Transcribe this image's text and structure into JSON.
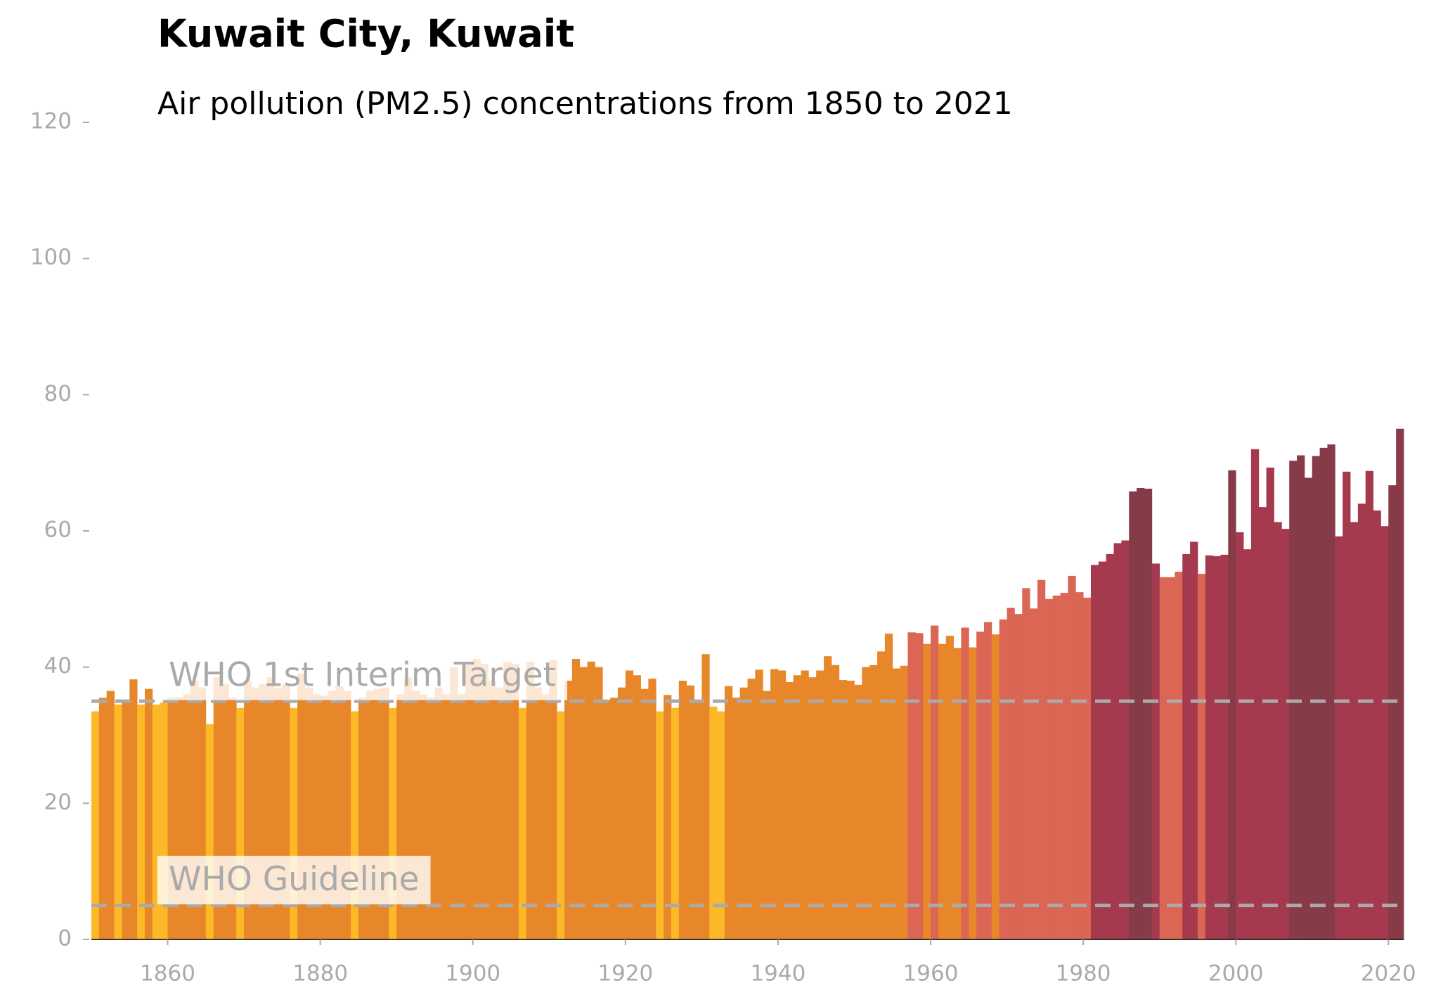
{
  "chart_data": {
    "type": "bar",
    "title": "Kuwait City, Kuwait",
    "subtitle": "Air pollution (PM2.5) concentrations from 1850 to 2021",
    "x": [
      1850,
      1851,
      1852,
      1853,
      1854,
      1855,
      1856,
      1857,
      1858,
      1859,
      1860,
      1861,
      1862,
      1863,
      1864,
      1865,
      1866,
      1867,
      1868,
      1869,
      1870,
      1871,
      1872,
      1873,
      1874,
      1875,
      1876,
      1877,
      1878,
      1879,
      1880,
      1881,
      1882,
      1883,
      1884,
      1885,
      1886,
      1887,
      1888,
      1889,
      1890,
      1891,
      1892,
      1893,
      1894,
      1895,
      1896,
      1897,
      1898,
      1899,
      1900,
      1901,
      1902,
      1903,
      1904,
      1905,
      1906,
      1907,
      1908,
      1909,
      1910,
      1911,
      1912,
      1913,
      1914,
      1915,
      1916,
      1917,
      1918,
      1919,
      1920,
      1921,
      1922,
      1923,
      1924,
      1925,
      1926,
      1927,
      1928,
      1929,
      1930,
      1931,
      1932,
      1933,
      1934,
      1935,
      1936,
      1937,
      1938,
      1939,
      1940,
      1941,
      1942,
      1943,
      1944,
      1945,
      1946,
      1947,
      1948,
      1949,
      1950,
      1951,
      1952,
      1953,
      1954,
      1955,
      1956,
      1957,
      1958,
      1959,
      1960,
      1961,
      1962,
      1963,
      1964,
      1965,
      1966,
      1967,
      1968,
      1969,
      1970,
      1971,
      1972,
      1973,
      1974,
      1975,
      1976,
      1977,
      1978,
      1979,
      1980,
      1981,
      1982,
      1983,
      1984,
      1985,
      1986,
      1987,
      1988,
      1989,
      1990,
      1991,
      1992,
      1993,
      1994,
      1995,
      1996,
      1997,
      1998,
      1999,
      2000,
      2001,
      2002,
      2003,
      2004,
      2005,
      2006,
      2007,
      2008,
      2009,
      2010,
      2011,
      2012,
      2013,
      2014,
      2015,
      2016,
      2017,
      2018,
      2019,
      2020,
      2021
    ],
    "values": [
      33.5,
      35.5,
      36.5,
      34.5,
      35.2,
      38.2,
      34.5,
      36.8,
      34.5,
      34.8,
      35.5,
      35.6,
      36,
      38,
      37,
      31.6,
      38.5,
      37.5,
      35.5,
      34,
      38,
      37,
      37.5,
      38.5,
      37,
      37.5,
      34,
      39,
      37,
      36,
      35.8,
      36.5,
      37.2,
      36.5,
      33.5,
      35.5,
      36.5,
      36.8,
      37,
      34,
      36,
      38.5,
      36.5,
      36,
      35.5,
      37,
      36,
      40,
      36,
      40.3,
      41.2,
      40.5,
      38,
      37,
      40.8,
      40.5,
      34,
      40.8,
      37,
      36,
      41,
      33.5,
      38,
      41.2,
      40,
      40.8,
      40,
      35.2,
      35.5,
      37,
      39.5,
      38.8,
      36.8,
      38.3,
      33.5,
      35.9,
      34,
      38,
      37.3,
      35.2,
      41.9,
      34.2,
      33.5,
      37.2,
      35.5,
      37,
      38.3,
      39.6,
      36.5,
      39.7,
      39.5,
      37.8,
      38.8,
      39.5,
      38.5,
      39.5,
      41.6,
      40.3,
      38.1,
      38,
      37.4,
      40,
      40.3,
      42.3,
      44.9,
      39.8,
      40.2,
      45.1,
      45,
      43.4,
      46.1,
      43.4,
      44.6,
      42.8,
      45.8,
      42.9,
      45.2,
      46.6,
      44.8,
      47,
      48.7,
      47.8,
      51.6,
      48.6,
      52.8,
      50,
      50.5,
      50.9,
      53.4,
      51,
      50.2,
      55,
      55.5,
      56.6,
      58.2,
      58.6,
      65.8,
      66.3,
      66.2,
      55.2,
      53.2,
      53.2,
      54,
      56.6,
      58.4,
      53.7,
      56.4,
      56.3,
      56.5,
      68.9,
      59.8,
      57.3,
      72,
      63.5,
      69.3,
      61.3,
      60.3,
      70.3,
      71.1,
      67.8,
      71,
      72.2,
      72.7,
      59.2,
      68.7,
      61.3,
      64,
      68.8,
      63,
      60.7,
      66.7,
      75
    ],
    "colors": [
      "#FDB827",
      "#E8872A",
      "#E8872A",
      "#FDB827",
      "#E8872A",
      "#E8872A",
      "#FDB827",
      "#E8872A",
      "#FDB827",
      "#FDB827",
      "#E8872A",
      "#E8872A",
      "#E8872A",
      "#E8872A",
      "#E8872A",
      "#FDB827",
      "#E8872A",
      "#E8872A",
      "#E8872A",
      "#FDB827",
      "#E8872A",
      "#E8872A",
      "#E8872A",
      "#E8872A",
      "#E8872A",
      "#E8872A",
      "#FDB827",
      "#E8872A",
      "#E8872A",
      "#E8872A",
      "#E8872A",
      "#E8872A",
      "#E8872A",
      "#E8872A",
      "#FDB827",
      "#E8872A",
      "#E8872A",
      "#E8872A",
      "#E8872A",
      "#FDB827",
      "#E8872A",
      "#E8872A",
      "#E8872A",
      "#E8872A",
      "#E8872A",
      "#E8872A",
      "#E8872A",
      "#E8872A",
      "#E8872A",
      "#E8872A",
      "#E8872A",
      "#E8872A",
      "#E8872A",
      "#E8872A",
      "#E8872A",
      "#E8872A",
      "#FDB827",
      "#E8872A",
      "#E8872A",
      "#E8872A",
      "#E8872A",
      "#FDB827",
      "#E8872A",
      "#E8872A",
      "#E8872A",
      "#E8872A",
      "#E8872A",
      "#E8872A",
      "#E8872A",
      "#E8872A",
      "#E8872A",
      "#E8872A",
      "#E8872A",
      "#E8872A",
      "#FDB827",
      "#E8872A",
      "#FDB827",
      "#E8872A",
      "#E8872A",
      "#E8872A",
      "#E8872A",
      "#FDB827",
      "#FDB827",
      "#E8872A",
      "#E8872A",
      "#E8872A",
      "#E8872A",
      "#E8872A",
      "#E8872A",
      "#E8872A",
      "#E8872A",
      "#E8872A",
      "#E8872A",
      "#E8872A",
      "#E8872A",
      "#E8872A",
      "#E8872A",
      "#E8872A",
      "#E8872A",
      "#E8872A",
      "#E8872A",
      "#E8872A",
      "#E8872A",
      "#E8872A",
      "#E8872A",
      "#E8872A",
      "#E8872A",
      "#DA6653",
      "#DA6653",
      "#E8872A",
      "#DA6653",
      "#E8872A",
      "#E8872A",
      "#E8872A",
      "#DA6653",
      "#E8872A",
      "#DA6653",
      "#DA6653",
      "#E8872A",
      "#DA6653",
      "#DA6653",
      "#DA6653",
      "#DA6653",
      "#DA6653",
      "#DA6653",
      "#DA6653",
      "#DA6653",
      "#DA6653",
      "#DA6653",
      "#DA6653",
      "#DA6653",
      "#A53A4F",
      "#A53A4F",
      "#A53A4F",
      "#A53A4F",
      "#A53A4F",
      "#873A47",
      "#873A47",
      "#873A47",
      "#A53A4F",
      "#DA6653",
      "#DA6653",
      "#DA6653",
      "#A53A4F",
      "#A53A4F",
      "#DA6653",
      "#A53A4F",
      "#A53A4F",
      "#A53A4F",
      "#873A47",
      "#A53A4F",
      "#A53A4F",
      "#A53A4F",
      "#A53A4F",
      "#A53A4F",
      "#A53A4F",
      "#A53A4F",
      "#873A47",
      "#873A47",
      "#873A47",
      "#873A47",
      "#873A47",
      "#873A47",
      "#A53A4F",
      "#A53A4F",
      "#A53A4F",
      "#A53A4F",
      "#A53A4F",
      "#A53A4F",
      "#A53A4F",
      "#873A47",
      "#873A47"
    ],
    "xlim": [
      1850,
      2022
    ],
    "xticks": [
      1860,
      1880,
      1900,
      1920,
      1940,
      1960,
      1980,
      2000,
      2020
    ],
    "ylim": [
      0,
      120
    ],
    "yticks": [
      0,
      20,
      40,
      60,
      80,
      100,
      120
    ],
    "reference_lines": [
      {
        "label": "WHO 1st Interim Target",
        "value": 35
      },
      {
        "label": "WHO Guideline",
        "value": 5
      }
    ],
    "reference_color": "#AAAAAA"
  }
}
